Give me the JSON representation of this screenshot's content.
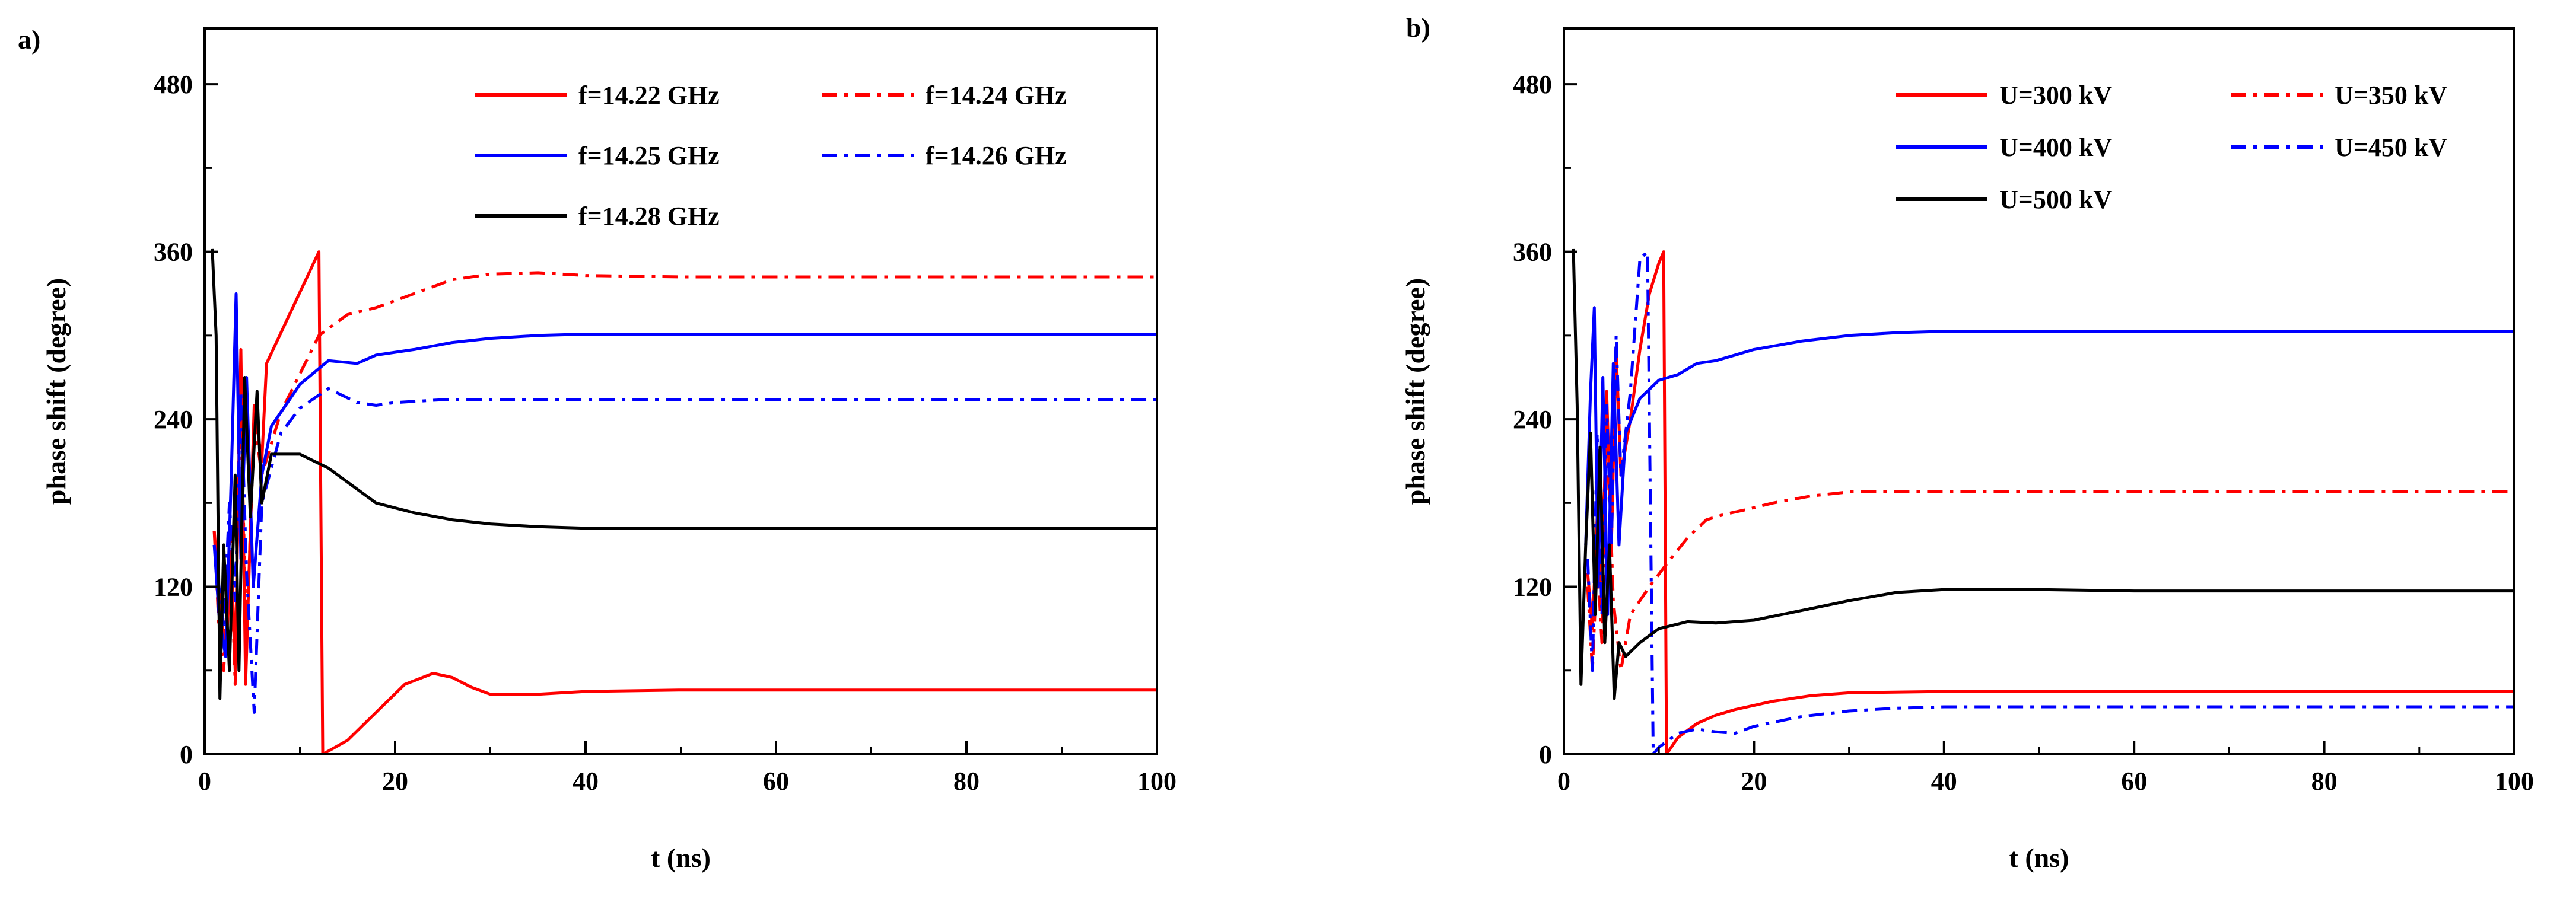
{
  "figure": {
    "colors": {
      "red": "#ff0000",
      "blue": "#0000ff",
      "black": "#000000"
    }
  },
  "chart_data": [
    {
      "type": "line",
      "panel_label": "a)",
      "title": "",
      "xlabel": "t (ns)",
      "ylabel": "phase shift (degree)",
      "xlim": [
        0,
        100
      ],
      "ylim": [
        0,
        520
      ],
      "xticks": [
        0,
        20,
        40,
        60,
        80,
        100
      ],
      "yticks": [
        0,
        120,
        240,
        360,
        480
      ],
      "legend_position": "top-right",
      "series": [
        {
          "name": "f=14.22 GHz",
          "color": "#ff0000",
          "style": "solid",
          "points": [
            [
              1,
              160
            ],
            [
              1.6,
              110
            ],
            [
              2.2,
              70
            ],
            [
              2.8,
              140
            ],
            [
              3.2,
              60
            ],
            [
              3.8,
              290
            ],
            [
              4.3,
              50
            ],
            [
              5.2,
              250
            ],
            [
              6,
              210
            ],
            [
              6.5,
              280
            ],
            [
              12,
              360
            ],
            [
              12.4,
              0
            ],
            [
              15,
              10
            ],
            [
              18,
              30
            ],
            [
              21,
              50
            ],
            [
              24,
              58
            ],
            [
              26,
              55
            ],
            [
              28,
              48
            ],
            [
              30,
              43
            ],
            [
              35,
              43
            ],
            [
              40,
              45
            ],
            [
              50,
              46
            ],
            [
              60,
              46
            ],
            [
              70,
              46
            ],
            [
              80,
              46
            ],
            [
              90,
              46
            ],
            [
              100,
              46
            ]
          ]
        },
        {
          "name": "f=14.24 GHz",
          "color": "#ff0000",
          "style": "dashdot",
          "points": [
            [
              1,
              160
            ],
            [
              1.5,
              90
            ],
            [
              2,
              60
            ],
            [
              2.7,
              160
            ],
            [
              3.2,
              50
            ],
            [
              3.7,
              270
            ],
            [
              4.4,
              80
            ],
            [
              5.2,
              240
            ],
            [
              6,
              200
            ],
            [
              8,
              245
            ],
            [
              12,
              300
            ],
            [
              15,
              315
            ],
            [
              18,
              320
            ],
            [
              22,
              330
            ],
            [
              26,
              340
            ],
            [
              30,
              344
            ],
            [
              35,
              345
            ],
            [
              40,
              343
            ],
            [
              50,
              342
            ],
            [
              60,
              342
            ],
            [
              70,
              342
            ],
            [
              80,
              342
            ],
            [
              90,
              342
            ],
            [
              100,
              342
            ]
          ]
        },
        {
          "name": "f=14.25 GHz",
          "color": "#0000ff",
          "style": "solid",
          "points": [
            [
              1,
              150
            ],
            [
              1.5,
              100
            ],
            [
              2.2,
              70
            ],
            [
              2.8,
              200
            ],
            [
              3.3,
              330
            ],
            [
              3.8,
              140
            ],
            [
              4.4,
              270
            ],
            [
              5.1,
              120
            ],
            [
              6,
              200
            ],
            [
              7,
              235
            ],
            [
              10,
              265
            ],
            [
              13,
              282
            ],
            [
              16,
              280
            ],
            [
              18,
              286
            ],
            [
              22,
              290
            ],
            [
              26,
              295
            ],
            [
              30,
              298
            ],
            [
              35,
              300
            ],
            [
              40,
              301
            ],
            [
              50,
              301
            ],
            [
              60,
              301
            ],
            [
              70,
              301
            ],
            [
              80,
              301
            ],
            [
              90,
              301
            ],
            [
              100,
              301
            ]
          ]
        },
        {
          "name": "f=14.26 GHz",
          "color": "#0000ff",
          "style": "dashdot",
          "points": [
            [
              1,
              150
            ],
            [
              1.5,
              120
            ],
            [
              2,
              90
            ],
            [
              2.6,
              180
            ],
            [
              3.2,
              110
            ],
            [
              3.8,
              260
            ],
            [
              4.4,
              130
            ],
            [
              5.2,
              30
            ],
            [
              6,
              180
            ],
            [
              8,
              230
            ],
            [
              10,
              248
            ],
            [
              13,
              262
            ],
            [
              16,
              252
            ],
            [
              18,
              250
            ],
            [
              20,
              252
            ],
            [
              25,
              254
            ],
            [
              30,
              254
            ],
            [
              40,
              254
            ],
            [
              50,
              254
            ],
            [
              60,
              254
            ],
            [
              70,
              254
            ],
            [
              80,
              254
            ],
            [
              90,
              254
            ],
            [
              100,
              254
            ]
          ]
        },
        {
          "name": "f=14.28 GHz",
          "color": "#000000",
          "style": "solid",
          "points": [
            [
              0.8,
              362
            ],
            [
              1.2,
              300
            ],
            [
              1.6,
              40
            ],
            [
              2,
              150
            ],
            [
              2.6,
              60
            ],
            [
              3.2,
              200
            ],
            [
              3.6,
              60
            ],
            [
              4.2,
              270
            ],
            [
              4.8,
              170
            ],
            [
              5.5,
              260
            ],
            [
              6,
              180
            ],
            [
              7,
              215
            ],
            [
              10,
              215
            ],
            [
              13,
              205
            ],
            [
              16,
              190
            ],
            [
              18,
              180
            ],
            [
              22,
              173
            ],
            [
              26,
              168
            ],
            [
              30,
              165
            ],
            [
              35,
              163
            ],
            [
              40,
              162
            ],
            [
              50,
              162
            ],
            [
              60,
              162
            ],
            [
              70,
              162
            ],
            [
              80,
              162
            ],
            [
              90,
              162
            ],
            [
              100,
              162
            ]
          ]
        }
      ]
    },
    {
      "type": "line",
      "panel_label": "b)",
      "title": "",
      "xlabel": "t (ns)",
      "ylabel": "phase shift (degree)",
      "xlim": [
        0,
        100
      ],
      "ylim": [
        0,
        520
      ],
      "xticks": [
        0,
        20,
        40,
        60,
        80,
        100
      ],
      "yticks": [
        0,
        120,
        240,
        360,
        480
      ],
      "legend_position": "top-right",
      "series": [
        {
          "name": "U=300 kV",
          "color": "#ff0000",
          "style": "solid",
          "points": [
            [
              2.5,
              130
            ],
            [
              3,
              90
            ],
            [
              3.5,
              170
            ],
            [
              4,
              110
            ],
            [
              4.5,
              260
            ],
            [
              5,
              150
            ],
            [
              5.5,
              290
            ],
            [
              6,
              200
            ],
            [
              7,
              240
            ],
            [
              8,
              290
            ],
            [
              9,
              330
            ],
            [
              10,
              352
            ],
            [
              10.5,
              360
            ],
            [
              10.8,
              0
            ],
            [
              12,
              12
            ],
            [
              14,
              22
            ],
            [
              16,
              28
            ],
            [
              18,
              32
            ],
            [
              22,
              38
            ],
            [
              26,
              42
            ],
            [
              30,
              44
            ],
            [
              40,
              45
            ],
            [
              50,
              45
            ],
            [
              60,
              45
            ],
            [
              70,
              45
            ],
            [
              80,
              45
            ],
            [
              90,
              45
            ],
            [
              100,
              45
            ]
          ]
        },
        {
          "name": "U=350 kV",
          "color": "#ff0000",
          "style": "dashdot",
          "points": [
            [
              2.5,
              120
            ],
            [
              3,
              60
            ],
            [
              3.5,
              140
            ],
            [
              4,
              80
            ],
            [
              4.6,
              230
            ],
            [
              5.2,
              110
            ],
            [
              6,
              60
            ],
            [
              7,
              100
            ],
            [
              9,
              120
            ],
            [
              11,
              138
            ],
            [
              13,
              155
            ],
            [
              15,
              168
            ],
            [
              17,
              172
            ],
            [
              19,
              175
            ],
            [
              22,
              180
            ],
            [
              26,
              185
            ],
            [
              30,
              188
            ],
            [
              40,
              188
            ],
            [
              50,
              188
            ],
            [
              60,
              188
            ],
            [
              70,
              188
            ],
            [
              80,
              188
            ],
            [
              90,
              188
            ],
            [
              100,
              188
            ]
          ]
        },
        {
          "name": "U=400 kV",
          "color": "#0000ff",
          "style": "solid",
          "points": [
            [
              2.3,
              150
            ],
            [
              2.8,
              260
            ],
            [
              3.2,
              320
            ],
            [
              3.6,
              120
            ],
            [
              4.1,
              270
            ],
            [
              4.6,
              100
            ],
            [
              5.2,
              280
            ],
            [
              5.8,
              150
            ],
            [
              6.5,
              230
            ],
            [
              8,
              255
            ],
            [
              10,
              268
            ],
            [
              12,
              272
            ],
            [
              14,
              280
            ],
            [
              16,
              282
            ],
            [
              18,
              286
            ],
            [
              20,
              290
            ],
            [
              25,
              296
            ],
            [
              30,
              300
            ],
            [
              35,
              302
            ],
            [
              40,
              303
            ],
            [
              50,
              303
            ],
            [
              60,
              303
            ],
            [
              70,
              303
            ],
            [
              80,
              303
            ],
            [
              90,
              303
            ],
            [
              100,
              303
            ]
          ]
        },
        {
          "name": "U=450 kV",
          "color": "#0000ff",
          "style": "dashdot",
          "points": [
            [
              2.5,
              140
            ],
            [
              3,
              60
            ],
            [
              3.5,
              230
            ],
            [
              4,
              100
            ],
            [
              4.5,
              250
            ],
            [
              5,
              150
            ],
            [
              5.5,
              300
            ],
            [
              6,
              200
            ],
            [
              7,
              260
            ],
            [
              8,
              355
            ],
            [
              8.8,
              360
            ],
            [
              9.4,
              0
            ],
            [
              10,
              5
            ],
            [
              12,
              15
            ],
            [
              14,
              18
            ],
            [
              16,
              16
            ],
            [
              18,
              15
            ],
            [
              20,
              20
            ],
            [
              25,
              27
            ],
            [
              30,
              31
            ],
            [
              35,
              33
            ],
            [
              40,
              34
            ],
            [
              50,
              34
            ],
            [
              60,
              34
            ],
            [
              70,
              34
            ],
            [
              80,
              34
            ],
            [
              90,
              34
            ],
            [
              100,
              34
            ]
          ]
        },
        {
          "name": "U=500 kV",
          "color": "#000000",
          "style": "solid",
          "points": [
            [
              1,
              362
            ],
            [
              1.4,
              250
            ],
            [
              1.8,
              50
            ],
            [
              2.3,
              150
            ],
            [
              2.8,
              230
            ],
            [
              3.3,
              100
            ],
            [
              3.8,
              220
            ],
            [
              4.3,
              80
            ],
            [
              4.8,
              150
            ],
            [
              5.3,
              40
            ],
            [
              5.8,
              80
            ],
            [
              6.5,
              70
            ],
            [
              8,
              80
            ],
            [
              10,
              90
            ],
            [
              13,
              95
            ],
            [
              16,
              94
            ],
            [
              20,
              96
            ],
            [
              25,
              103
            ],
            [
              30,
              110
            ],
            [
              35,
              116
            ],
            [
              40,
              118
            ],
            [
              50,
              118
            ],
            [
              60,
              117
            ],
            [
              70,
              117
            ],
            [
              80,
              117
            ],
            [
              90,
              117
            ],
            [
              100,
              117
            ]
          ]
        }
      ]
    }
  ]
}
